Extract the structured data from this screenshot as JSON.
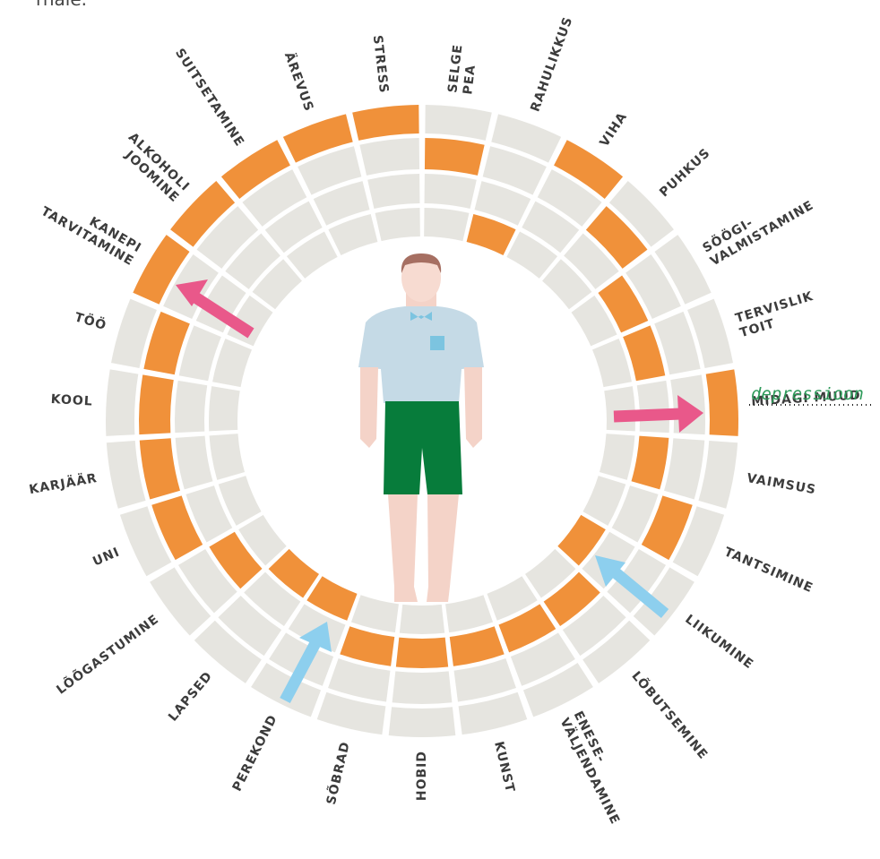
{
  "top_text": "rnale.",
  "annotation": "depressioon",
  "segments": [
    {
      "label": [
        "SELGE",
        "PEA"
      ],
      "ring": 3
    },
    {
      "label": [
        "RAHULIKKUS"
      ],
      "ring": 1
    },
    {
      "label": [
        "VIHA"
      ],
      "ring": 4
    },
    {
      "label": [
        "PUHKUS"
      ],
      "ring": 3
    },
    {
      "label": [
        "SÖÖGI-",
        "VALMISTAMINE"
      ],
      "ring": 2
    },
    {
      "label": [
        "TERVISLIK",
        "TOIT"
      ],
      "ring": 2
    },
    {
      "label": [
        "MIDAGI MUUD"
      ],
      "ring": 4
    },
    {
      "label": [
        "VAIMSUS"
      ],
      "ring": 2
    },
    {
      "label": [
        "TANTSIMINE"
      ],
      "ring": 3
    },
    {
      "label": [
        "LIIKUMINE"
      ],
      "ring": 1
    },
    {
      "label": [
        "LÕBUTSEMINE"
      ],
      "ring": 2
    },
    {
      "label": [
        "ENESE-",
        "VÄLJENDAMINE"
      ],
      "ring": 2
    },
    {
      "label": [
        "KUNST"
      ],
      "ring": 2
    },
    {
      "label": [
        "HOBID"
      ],
      "ring": 2
    },
    {
      "label": [
        "SÕBRAD"
      ],
      "ring": 2
    },
    {
      "label": [
        "PEREKOND"
      ],
      "ring": 1
    },
    {
      "label": [
        "LAPSED"
      ],
      "ring": 1
    },
    {
      "label": [
        "LÕÕGASTUMINE"
      ],
      "ring": 2
    },
    {
      "label": [
        "UNI"
      ],
      "ring": 3
    },
    {
      "label": [
        "KARJÄÄR"
      ],
      "ring": 3
    },
    {
      "label": [
        "KOOL"
      ],
      "ring": 3
    },
    {
      "label": [
        "TÖÖ"
      ],
      "ring": 3
    },
    {
      "label": [
        "KANEPI",
        "TARVITAMINE"
      ],
      "ring": 4
    },
    {
      "label": [
        "ALKOHOLI",
        "JOOMINE"
      ],
      "ring": 4
    },
    {
      "label": [
        "SUITSETAMINE"
      ],
      "ring": 4
    },
    {
      "label": [
        "ÄREVUS"
      ],
      "ring": 4
    },
    {
      "label": [
        "STRESS"
      ],
      "ring": 4
    }
  ]
}
